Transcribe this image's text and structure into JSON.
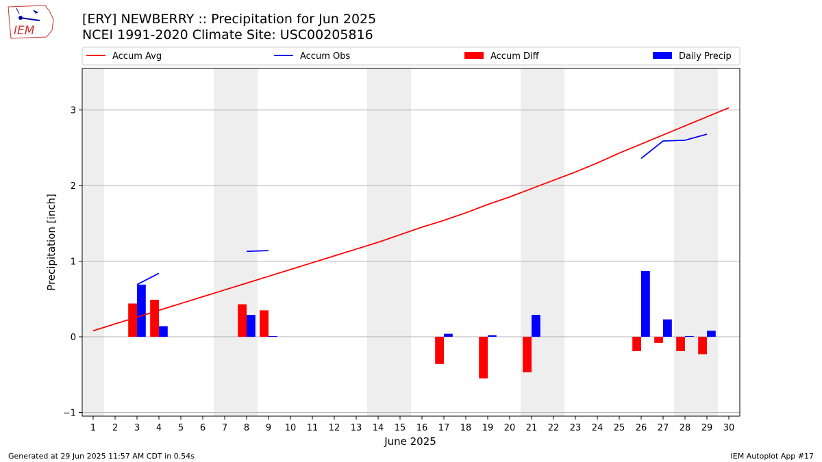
{
  "logo": {
    "text": "IEM"
  },
  "title": {
    "line1": "[ERY] NEWBERRY :: Precipitation for Jun 2025",
    "line2": "NCEI 1991-2020 Climate Site: USC00205816"
  },
  "footer": {
    "left": "Generated at 29 Jun 2025 11:57 AM CDT in 0.54s",
    "right": "IEM Autoplot App #17"
  },
  "colors": {
    "avg": "#ff0000",
    "obs": "#0000ff",
    "diff": "#ff0000",
    "daily": "#0000ff",
    "weekend": "#eeeeee"
  },
  "chart_data": {
    "type": "bar",
    "xlabel": "June 2025",
    "ylabel": "Precipitation [inch]",
    "xlim": [
      0.5,
      30.5
    ],
    "ylim": [
      -1.05,
      3.55
    ],
    "yticks": [
      -1,
      0,
      1,
      2,
      3
    ],
    "grid": "horizontal",
    "legend_position": "top",
    "weekend_days": [
      1,
      7,
      8,
      14,
      15,
      21,
      22,
      28,
      29
    ],
    "days": [
      1,
      2,
      3,
      4,
      5,
      6,
      7,
      8,
      9,
      10,
      11,
      12,
      13,
      14,
      15,
      16,
      17,
      18,
      19,
      20,
      21,
      22,
      23,
      24,
      25,
      26,
      27,
      28,
      29,
      30
    ],
    "legend": [
      {
        "label": "Accum Avg",
        "kind": "line",
        "series": "accum_avg"
      },
      {
        "label": "Accum Obs",
        "kind": "line",
        "series": "accum_obs"
      },
      {
        "label": "Accum Diff",
        "kind": "bar",
        "series": "accum_diff"
      },
      {
        "label": "Daily Precip",
        "kind": "bar",
        "series": "daily_precip"
      }
    ],
    "series": {
      "accum_avg": {
        "name": "Accum Avg",
        "values": [
          0.08,
          0.17,
          0.26,
          0.35,
          0.44,
          0.53,
          0.62,
          0.71,
          0.8,
          0.89,
          0.98,
          1.07,
          1.16,
          1.25,
          1.35,
          1.45,
          1.54,
          1.64,
          1.75,
          1.85,
          1.96,
          2.07,
          2.18,
          2.3,
          2.43,
          2.55,
          2.67,
          2.79,
          2.91,
          3.03
        ]
      },
      "accum_obs": {
        "name": "Accum Obs",
        "segments": [
          {
            "days": [
              3,
              4
            ],
            "values": [
              0.69,
              0.84
            ]
          },
          {
            "days": [
              8,
              9
            ],
            "values": [
              1.13,
              1.14
            ]
          },
          {
            "days": [
              26,
              27,
              28,
              29
            ],
            "values": [
              2.36,
              2.59,
              2.6,
              2.68
            ]
          }
        ]
      },
      "accum_diff": {
        "name": "Accum Diff",
        "days": [
          3,
          4,
          8,
          9,
          17,
          19,
          21,
          26,
          27,
          28,
          29
        ],
        "values": [
          0.44,
          0.49,
          0.43,
          0.35,
          -0.36,
          -0.55,
          -0.47,
          -0.19,
          -0.08,
          -0.19,
          -0.23
        ]
      },
      "daily_precip": {
        "name": "Daily Precip",
        "days": [
          3,
          4,
          8,
          9,
          17,
          19,
          21,
          26,
          27,
          28,
          29
        ],
        "values": [
          0.69,
          0.14,
          0.29,
          0.01,
          0.04,
          0.02,
          0.29,
          0.87,
          0.23,
          0.01,
          0.08
        ]
      }
    }
  }
}
